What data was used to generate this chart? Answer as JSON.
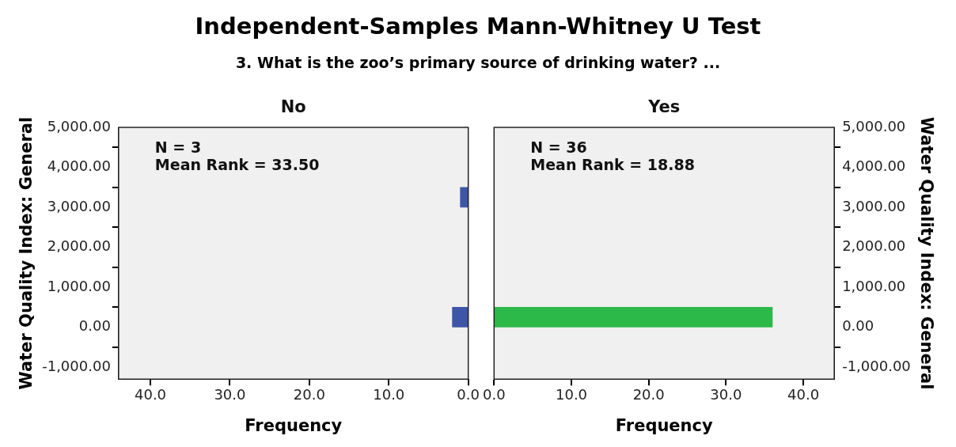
{
  "chart_data": [
    {
      "type": "histogram",
      "orientation": "horizontal",
      "title": "Independent-Samples Mann-Whitney U Test",
      "subtitle": "3. What is the zoo’s primary source of drinking water? ...",
      "annotations": [
        "No",
        "N = 3",
        "Mean Rank = 33.50"
      ],
      "xlabel": "Frequency",
      "ylabel": "Water Quality Index: General",
      "color": "#3f56a8",
      "bins": [
        0,
        500,
        1000,
        1500,
        2000,
        2500,
        3000,
        3500
      ],
      "values": [
        2,
        0,
        0,
        0,
        0,
        0,
        1
      ],
      "xlim": [
        44,
        0
      ],
      "xticks": [
        {
          "value": 40,
          "label": "40.0"
        },
        {
          "value": 30,
          "label": "30.0"
        },
        {
          "value": 20,
          "label": "20.0"
        },
        {
          "value": 10,
          "label": "10.0"
        },
        {
          "value": 0,
          "label": "0.0"
        }
      ],
      "ylim": [
        -1300,
        5000
      ],
      "yticks": [
        {
          "value": -1000,
          "label": "-1,000.00"
        },
        {
          "value": 0,
          "label": "0.00"
        },
        {
          "value": 1000,
          "label": "1,000.00"
        },
        {
          "value": 2000,
          "label": "2,000.00"
        },
        {
          "value": 3000,
          "label": "3,000.00"
        },
        {
          "value": 4000,
          "label": "4,000.00"
        },
        {
          "value": 5000,
          "label": "5,000.00"
        }
      ]
    },
    {
      "type": "histogram",
      "orientation": "horizontal",
      "annotations": [
        "Yes",
        "N = 36",
        "Mean Rank = 18.88"
      ],
      "xlabel": "Frequency",
      "ylabel": "Water Quality Index: General",
      "color": "#2db84a",
      "bins": [
        0,
        500,
        1000,
        1500,
        2000,
        2500,
        3000,
        3500
      ],
      "values": [
        36,
        0,
        0,
        0,
        0,
        0,
        0
      ],
      "xlim": [
        0,
        44
      ],
      "xticks": [
        {
          "value": 0,
          "label": "0.0"
        },
        {
          "value": 10,
          "label": "10.0"
        },
        {
          "value": 20,
          "label": "20.0"
        },
        {
          "value": 30,
          "label": "30.0"
        },
        {
          "value": 40,
          "label": "40.0"
        }
      ],
      "ylim": [
        -1300,
        5000
      ],
      "yticks": [
        {
          "value": -1000,
          "label": "-1,000.00"
        },
        {
          "value": 0,
          "label": "0.00"
        },
        {
          "value": 1000,
          "label": "1,000.00"
        },
        {
          "value": 2000,
          "label": "2,000.00"
        },
        {
          "value": 3000,
          "label": "3,000.00"
        },
        {
          "value": 4000,
          "label": "4,000.00"
        },
        {
          "value": 5000,
          "label": "5,000.00"
        }
      ]
    }
  ]
}
